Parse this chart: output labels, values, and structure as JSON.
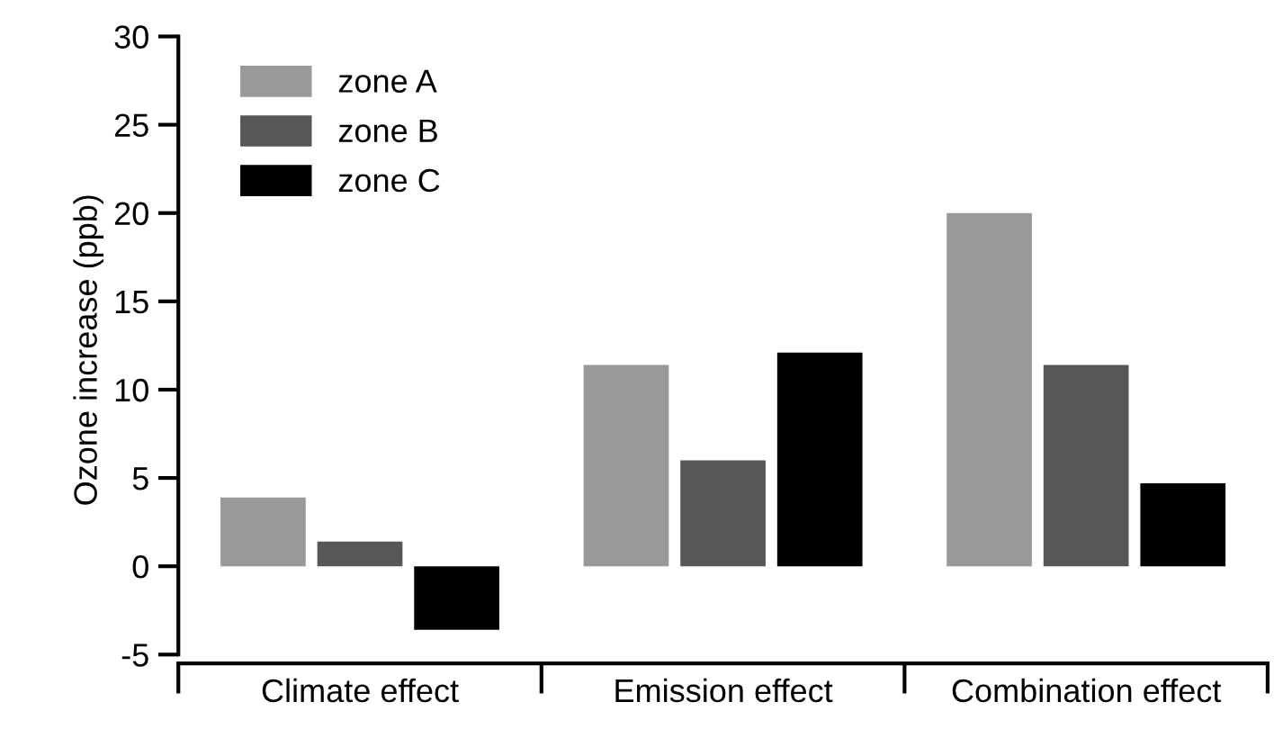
{
  "chart_data": {
    "type": "bar",
    "ylabel": "Ozone increase (ppb)",
    "categories": [
      "Climate effect",
      "Emission effect",
      "Combination effect"
    ],
    "series": [
      {
        "name": "zone A",
        "color": "#999999",
        "values": [
          3.9,
          11.4,
          20.0
        ]
      },
      {
        "name": "zone B",
        "color": "#575757",
        "values": [
          1.4,
          6.0,
          11.4
        ]
      },
      {
        "name": "zone C",
        "color": "#000000",
        "values": [
          -3.6,
          12.1,
          4.7
        ]
      }
    ],
    "ylim": [
      -5.5,
      30
    ],
    "yticks": [
      -5,
      0,
      5,
      10,
      15,
      20,
      25,
      30
    ],
    "grid": false,
    "legend": "top left"
  }
}
